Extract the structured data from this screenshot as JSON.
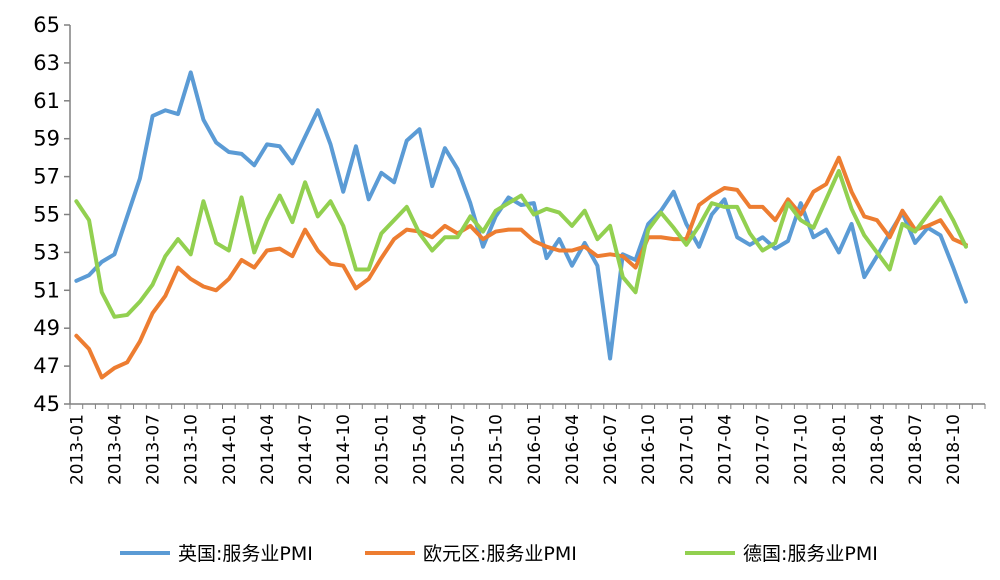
{
  "chart_data": {
    "type": "line",
    "title": "",
    "xlabel": "",
    "ylabel": "",
    "ylim": [
      45,
      65
    ],
    "yticks": [
      45,
      47,
      49,
      51,
      53,
      55,
      57,
      59,
      61,
      63,
      65
    ],
    "grid": false,
    "legend_position": "bottom",
    "x": [
      "2013-01",
      "2013-02",
      "2013-03",
      "2013-04",
      "2013-05",
      "2013-06",
      "2013-07",
      "2013-08",
      "2013-09",
      "2013-10",
      "2013-11",
      "2013-12",
      "2014-01",
      "2014-02",
      "2014-03",
      "2014-04",
      "2014-05",
      "2014-06",
      "2014-07",
      "2014-08",
      "2014-09",
      "2014-10",
      "2014-11",
      "2014-12",
      "2015-01",
      "2015-02",
      "2015-03",
      "2015-04",
      "2015-05",
      "2015-06",
      "2015-07",
      "2015-08",
      "2015-09",
      "2015-10",
      "2015-11",
      "2015-12",
      "2016-01",
      "2016-02",
      "2016-03",
      "2016-04",
      "2016-05",
      "2016-06",
      "2016-07",
      "2016-08",
      "2016-09",
      "2016-10",
      "2016-11",
      "2016-12",
      "2017-01",
      "2017-02",
      "2017-03",
      "2017-04",
      "2017-05",
      "2017-06",
      "2017-07",
      "2017-08",
      "2017-09",
      "2017-10",
      "2017-11",
      "2017-12",
      "2018-01",
      "2018-02",
      "2018-03",
      "2018-04",
      "2018-05",
      "2018-06",
      "2018-07",
      "2018-08",
      "2018-09",
      "2018-10",
      "2018-11",
      "2018-12"
    ],
    "xtick_labels": [
      "2013-01",
      "2013-04",
      "2013-07",
      "2013-10",
      "2014-01",
      "2014-04",
      "2014-07",
      "2014-10",
      "2015-01",
      "2015-04",
      "2015-07",
      "2015-10",
      "2016-01",
      "2016-04",
      "2016-07",
      "2016-10",
      "2017-01",
      "2017-04",
      "2017-07",
      "2017-10",
      "2018-01",
      "2018-04",
      "2018-07",
      "2018-10"
    ],
    "series": [
      {
        "name": "英国:服务业PMI",
        "color": "#5B9BD5",
        "values": [
          51.5,
          51.8,
          52.5,
          52.9,
          54.9,
          56.9,
          60.2,
          60.5,
          60.3,
          62.5,
          60.0,
          58.8,
          58.3,
          58.2,
          57.6,
          58.7,
          58.6,
          57.7,
          59.1,
          60.5,
          58.7,
          56.2,
          58.6,
          55.8,
          57.2,
          56.7,
          58.9,
          59.5,
          56.5,
          58.5,
          57.4,
          55.6,
          53.3,
          54.9,
          55.9,
          55.5,
          55.6,
          52.7,
          53.7,
          52.3,
          53.5,
          52.3,
          47.4,
          52.9,
          52.6,
          54.5,
          55.2,
          56.2,
          54.5,
          53.3,
          55.0,
          55.8,
          53.8,
          53.4,
          53.8,
          53.2,
          53.6,
          55.6,
          53.8,
          54.2,
          53.0,
          54.5,
          51.7,
          52.8,
          54.0,
          55.1,
          53.5,
          54.3,
          53.9,
          52.2,
          50.4,
          null
        ]
      },
      {
        "name": "欧元区:服务业PMI",
        "color": "#ED7D31",
        "values": [
          48.6,
          47.9,
          46.4,
          46.9,
          47.2,
          48.3,
          49.8,
          50.7,
          52.2,
          51.6,
          51.2,
          51.0,
          51.6,
          52.6,
          52.2,
          53.1,
          53.2,
          52.8,
          54.2,
          53.1,
          52.4,
          52.3,
          51.1,
          51.6,
          52.7,
          53.7,
          54.2,
          54.1,
          53.8,
          54.4,
          54.0,
          54.4,
          53.7,
          54.1,
          54.2,
          54.2,
          53.6,
          53.3,
          53.1,
          53.1,
          53.3,
          52.8,
          52.9,
          52.8,
          52.2,
          53.8,
          53.8,
          53.7,
          53.7,
          55.5,
          56.0,
          56.4,
          56.3,
          55.4,
          55.4,
          54.7,
          55.8,
          55.0,
          56.2,
          56.6,
          58.0,
          56.2,
          54.9,
          54.7,
          53.8,
          55.2,
          54.2,
          54.4,
          54.7,
          53.7,
          53.4,
          null
        ]
      },
      {
        "name": "德国:服务业PMI",
        "color": "#92D050",
        "values": [
          55.7,
          54.7,
          50.9,
          49.6,
          49.7,
          50.4,
          51.3,
          52.8,
          53.7,
          52.9,
          55.7,
          53.5,
          53.1,
          55.9,
          53.0,
          54.7,
          56.0,
          54.6,
          56.7,
          54.9,
          55.7,
          54.4,
          52.1,
          52.1,
          54.0,
          54.7,
          55.4,
          54.0,
          53.1,
          53.8,
          53.8,
          54.9,
          54.1,
          55.2,
          55.6,
          56.0,
          55.0,
          55.3,
          55.1,
          54.4,
          55.2,
          53.7,
          54.4,
          51.7,
          50.9,
          54.2,
          55.1,
          54.3,
          53.4,
          54.4,
          55.6,
          55.4,
          55.4,
          54.0,
          53.1,
          53.5,
          55.6,
          54.7,
          54.3,
          55.8,
          57.3,
          55.3,
          53.9,
          53.0,
          52.1,
          54.5,
          54.1,
          55.0,
          55.9,
          54.7,
          53.3,
          null
        ]
      }
    ]
  }
}
